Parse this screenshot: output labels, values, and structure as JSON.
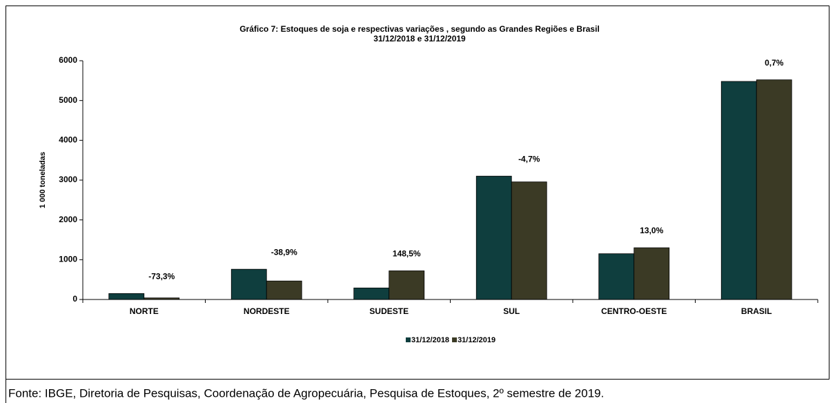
{
  "chart_data": {
    "type": "bar",
    "title": "Gráfico 7: Estoques de soja e respectivas  variações , segundo as Grandes Regiões e Brasil",
    "subtitle": "31/12/2018  e 31/12/2019",
    "y_label": "1 000 toneladas",
    "categories": [
      "NORTE",
      "NORDESTE",
      "SUDESTE",
      "SUL",
      "CENTRO-OESTE",
      "BRASIL"
    ],
    "series": [
      {
        "name": "31/12/2018",
        "color": "#0f3e3e",
        "values": [
          150,
          760,
          290,
          3100,
          1150,
          5480
        ]
      },
      {
        "name": "31/12/2019",
        "color": "#3b3a25",
        "values": [
          40,
          465,
          720,
          2955,
          1300,
          5520
        ]
      }
    ],
    "change_labels": [
      "-73,3%",
      "-38,9%",
      "148,5%",
      "-4,7%",
      "13,0%",
      "0,7%"
    ],
    "ylim": [
      0,
      6000
    ],
    "yticks": [
      0,
      1000,
      2000,
      3000,
      4000,
      5000,
      6000
    ],
    "legend": "bottom",
    "source": "Fonte: IBGE, Diretoria de Pesquisas, Coordenação de Agropecuária, Pesquisa de Estoques, 2º semestre de 2019."
  }
}
